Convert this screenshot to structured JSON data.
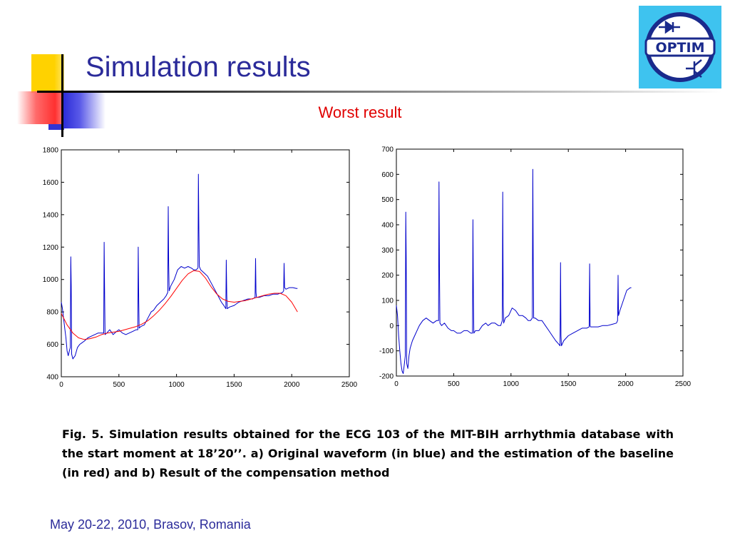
{
  "slide": {
    "title": "Simulation results",
    "subtitle": "Worst result",
    "caption": "Fig. 5.  Simulation results obtained for the ECG 103 of the MIT-BIH arrhythmia database with the start moment at 18’20’’. a) Original waveform (in blue) and the estimation of the baseline (in red) and b) Result of the compensation method",
    "footer": "May 20-22, 2010, Brasov, Romania",
    "logo": {
      "text": "OPTIM",
      "icon": "diode-transistor-logo-icon",
      "colors": {
        "background": "#3ec3ef",
        "ring": "#1a2a8c"
      }
    }
  },
  "colors": {
    "title": "#2b2b9a",
    "subtitle": "#e00000",
    "waveform": "#0000cc",
    "baseline": "#ff0000"
  },
  "chart_data": [
    {
      "type": "line",
      "xlim": [
        0,
        2500
      ],
      "ylim": [
        400,
        1800
      ],
      "xticks": [
        0,
        500,
        1000,
        1500,
        2000,
        2500
      ],
      "yticks": [
        400,
        600,
        800,
        1000,
        1200,
        1400,
        1600,
        1800
      ],
      "grid": false,
      "series": [
        {
          "color": "#0000cc",
          "x": [
            0,
            10,
            20,
            30,
            40,
            50,
            60,
            70,
            78,
            82,
            86,
            90,
            100,
            110,
            120,
            140,
            160,
            180,
            200,
            230,
            260,
            290,
            320,
            350,
            368,
            372,
            376,
            380,
            395,
            420,
            450,
            480,
            500,
            530,
            560,
            590,
            620,
            650,
            664,
            668,
            672,
            676,
            690,
            720,
            750,
            780,
            800,
            830,
            860,
            890,
            910,
            924,
            928,
            932,
            936,
            950,
            980,
            1010,
            1040,
            1070,
            1100,
            1130,
            1150,
            1170,
            1186,
            1190,
            1194,
            1198,
            1210,
            1240,
            1270,
            1300,
            1330,
            1360,
            1390,
            1410,
            1428,
            1432,
            1436,
            1440,
            1460,
            1500,
            1540,
            1580,
            1620,
            1660,
            1682,
            1686,
            1690,
            1694,
            1720,
            1760,
            1800,
            1840,
            1880,
            1920,
            1930,
            1934,
            1938,
            1950,
            1980,
            2010,
            2040,
            2050
          ],
          "y": [
            860,
            820,
            760,
            700,
            640,
            560,
            530,
            560,
            580,
            1140,
            960,
            540,
            510,
            520,
            530,
            580,
            600,
            610,
            620,
            640,
            650,
            660,
            670,
            670,
            670,
            1230,
            900,
            660,
            670,
            690,
            660,
            680,
            690,
            670,
            660,
            670,
            680,
            690,
            690,
            1200,
            880,
            700,
            710,
            720,
            760,
            800,
            810,
            840,
            860,
            880,
            900,
            920,
            1450,
            1100,
            930,
            960,
            1000,
            1060,
            1080,
            1070,
            1080,
            1070,
            1060,
            1060,
            1070,
            1650,
            1300,
            1080,
            1060,
            1040,
            1020,
            980,
            940,
            900,
            860,
            840,
            820,
            1120,
            900,
            820,
            830,
            840,
            860,
            870,
            880,
            880,
            890,
            1130,
            920,
            890,
            890,
            900,
            900,
            910,
            910,
            920,
            930,
            1100,
            950,
            940,
            950,
            950,
            945,
            945
          ]
        },
        {
          "color": "#ff0000",
          "x": [
            0,
            50,
            100,
            150,
            200,
            250,
            300,
            350,
            400,
            450,
            500,
            550,
            600,
            650,
            700,
            750,
            800,
            850,
            900,
            950,
            1000,
            1050,
            1100,
            1150,
            1200,
            1250,
            1300,
            1350,
            1400,
            1450,
            1500,
            1550,
            1600,
            1650,
            1700,
            1750,
            1800,
            1850,
            1900,
            1950,
            2000,
            2050
          ],
          "y": [
            790,
            720,
            670,
            640,
            630,
            635,
            645,
            660,
            670,
            675,
            680,
            690,
            700,
            710,
            725,
            745,
            775,
            810,
            850,
            895,
            945,
            995,
            1035,
            1055,
            1050,
            1010,
            955,
            910,
            880,
            865,
            860,
            865,
            870,
            880,
            890,
            900,
            910,
            915,
            915,
            900,
            860,
            800
          ]
        }
      ]
    },
    {
      "type": "line",
      "xlim": [
        0,
        2500
      ],
      "ylim": [
        -200,
        700
      ],
      "xticks": [
        0,
        500,
        1000,
        1500,
        2000,
        2500
      ],
      "yticks": [
        -200,
        -100,
        0,
        100,
        200,
        300,
        400,
        500,
        600,
        700
      ],
      "grid": false,
      "series": [
        {
          "color": "#0000cc",
          "x": [
            0,
            10,
            20,
            30,
            40,
            50,
            60,
            70,
            78,
            82,
            86,
            90,
            100,
            110,
            120,
            140,
            160,
            180,
            200,
            230,
            260,
            290,
            320,
            350,
            368,
            372,
            376,
            380,
            395,
            420,
            450,
            480,
            500,
            530,
            560,
            590,
            620,
            650,
            664,
            668,
            672,
            676,
            690,
            720,
            750,
            780,
            800,
            830,
            860,
            890,
            910,
            924,
            928,
            932,
            936,
            950,
            980,
            1010,
            1040,
            1070,
            1100,
            1130,
            1150,
            1170,
            1186,
            1190,
            1194,
            1198,
            1210,
            1240,
            1270,
            1300,
            1330,
            1360,
            1390,
            1410,
            1428,
            1432,
            1436,
            1440,
            1460,
            1500,
            1540,
            1580,
            1620,
            1660,
            1682,
            1686,
            1690,
            1694,
            1720,
            1760,
            1800,
            1840,
            1880,
            1920,
            1930,
            1934,
            1938,
            1950,
            1980,
            2010,
            2040,
            2050
          ],
          "y": [
            80,
            40,
            -40,
            -100,
            -150,
            -180,
            -190,
            -150,
            -120,
            450,
            270,
            -150,
            -170,
            -120,
            -90,
            -60,
            -40,
            -20,
            0,
            20,
            30,
            20,
            10,
            20,
            20,
            570,
            200,
            10,
            0,
            10,
            -10,
            -20,
            -20,
            -30,
            -30,
            -20,
            -20,
            -30,
            -30,
            420,
            100,
            -30,
            -20,
            -20,
            0,
            10,
            0,
            10,
            10,
            0,
            0,
            20,
            530,
            80,
            10,
            30,
            40,
            70,
            60,
            40,
            40,
            30,
            20,
            20,
            30,
            620,
            250,
            30,
            30,
            20,
            20,
            0,
            -20,
            -40,
            -60,
            -70,
            -80,
            250,
            -40,
            -80,
            -60,
            -40,
            -30,
            -20,
            -10,
            -10,
            -5,
            245,
            0,
            -5,
            -5,
            -5,
            0,
            0,
            5,
            10,
            20,
            200,
            40,
            60,
            100,
            140,
            150,
            150
          ]
        }
      ]
    }
  ]
}
